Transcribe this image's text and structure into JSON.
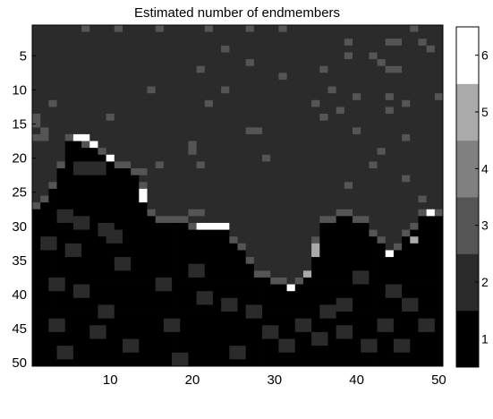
{
  "chart_data": {
    "type": "heatmap",
    "title": "Estimated number of endmembers",
    "xlabel": "",
    "ylabel": "",
    "rows": 50,
    "cols": 50,
    "x_ticks": [
      10,
      20,
      30,
      40,
      50
    ],
    "y_ticks": [
      5,
      10,
      15,
      20,
      25,
      30,
      35,
      40,
      45,
      50
    ],
    "colorbar": {
      "levels": 6,
      "ticks": [
        1,
        2,
        3,
        4,
        5,
        6
      ],
      "colors": [
        "#000000",
        "#2b2b2b",
        "#555555",
        "#808080",
        "#aaaaaa",
        "#ffffff"
      ]
    },
    "background_value": 2,
    "grid": false,
    "boundary": [
      {
        "x": 1,
        "y": 27
      },
      {
        "x": 3,
        "y": 24
      },
      {
        "x": 5,
        "y": 17
      },
      {
        "x": 6,
        "y": 17
      },
      {
        "x": 8,
        "y": 18
      },
      {
        "x": 10,
        "y": 20
      },
      {
        "x": 12,
        "y": 21
      },
      {
        "x": 13,
        "y": 22
      },
      {
        "x": 14,
        "y": 24
      },
      {
        "x": 14,
        "y": 27
      },
      {
        "x": 16,
        "y": 29
      },
      {
        "x": 19,
        "y": 29
      },
      {
        "x": 21,
        "y": 30
      },
      {
        "x": 24,
        "y": 30
      },
      {
        "x": 26,
        "y": 33
      },
      {
        "x": 28,
        "y": 37
      },
      {
        "x": 31,
        "y": 38
      },
      {
        "x": 32,
        "y": 39
      },
      {
        "x": 34,
        "y": 37
      },
      {
        "x": 35,
        "y": 32
      },
      {
        "x": 36,
        "y": 29
      },
      {
        "x": 39,
        "y": 28
      },
      {
        "x": 41,
        "y": 29
      },
      {
        "x": 43,
        "y": 32
      },
      {
        "x": 44,
        "y": 34
      },
      {
        "x": 46,
        "y": 31
      },
      {
        "x": 48,
        "y": 28
      },
      {
        "x": 50,
        "y": 28
      }
    ],
    "ridge_cells": [
      {
        "x": 6,
        "y": 17,
        "value": 6
      },
      {
        "x": 7,
        "y": 17,
        "value": 6
      },
      {
        "x": 8,
        "y": 18,
        "value": 6
      },
      {
        "x": 10,
        "y": 20,
        "value": 6
      },
      {
        "x": 14,
        "y": 25,
        "value": 6
      },
      {
        "x": 14,
        "y": 26,
        "value": 6
      },
      {
        "x": 21,
        "y": 30,
        "value": 6
      },
      {
        "x": 22,
        "y": 30,
        "value": 6
      },
      {
        "x": 23,
        "y": 30,
        "value": 6
      },
      {
        "x": 24,
        "y": 30,
        "value": 6
      },
      {
        "x": 32,
        "y": 39,
        "value": 6
      },
      {
        "x": 44,
        "y": 34,
        "value": 6
      },
      {
        "x": 49,
        "y": 28,
        "value": 6
      },
      {
        "x": 35,
        "y": 33,
        "value": 5
      },
      {
        "x": 35,
        "y": 34,
        "value": 5
      },
      {
        "x": 34,
        "y": 37,
        "value": 5
      },
      {
        "x": 47,
        "y": 32,
        "value": 5
      }
    ],
    "sparse_cells": [
      {
        "x": 7,
        "y": 1
      },
      {
        "x": 11,
        "y": 1
      },
      {
        "x": 16,
        "y": 1
      },
      {
        "x": 22,
        "y": 1
      },
      {
        "x": 27,
        "y": 1
      },
      {
        "x": 31,
        "y": 1
      },
      {
        "x": 47,
        "y": 1
      },
      {
        "x": 39,
        "y": 3
      },
      {
        "x": 44,
        "y": 3
      },
      {
        "x": 45,
        "y": 3
      },
      {
        "x": 48,
        "y": 3
      },
      {
        "x": 49,
        "y": 4
      },
      {
        "x": 24,
        "y": 4
      },
      {
        "x": 39,
        "y": 5
      },
      {
        "x": 42,
        "y": 5
      },
      {
        "x": 43,
        "y": 6
      },
      {
        "x": 27,
        "y": 6
      },
      {
        "x": 21,
        "y": 7
      },
      {
        "x": 36,
        "y": 7
      },
      {
        "x": 44,
        "y": 7
      },
      {
        "x": 45,
        "y": 7
      },
      {
        "x": 31,
        "y": 8
      },
      {
        "x": 15,
        "y": 10
      },
      {
        "x": 24,
        "y": 10
      },
      {
        "x": 37,
        "y": 10
      },
      {
        "x": 40,
        "y": 11
      },
      {
        "x": 44,
        "y": 11
      },
      {
        "x": 50,
        "y": 11
      },
      {
        "x": 3,
        "y": 12
      },
      {
        "x": 22,
        "y": 12
      },
      {
        "x": 35,
        "y": 12
      },
      {
        "x": 46,
        "y": 12
      },
      {
        "x": 38,
        "y": 13
      },
      {
        "x": 44,
        "y": 13
      },
      {
        "x": 1,
        "y": 14
      },
      {
        "x": 10,
        "y": 14
      },
      {
        "x": 36,
        "y": 14
      },
      {
        "x": 1,
        "y": 15
      },
      {
        "x": 2,
        "y": 16
      },
      {
        "x": 27,
        "y": 16
      },
      {
        "x": 28,
        "y": 16
      },
      {
        "x": 40,
        "y": 16
      },
      {
        "x": 1,
        "y": 17
      },
      {
        "x": 2,
        "y": 17
      },
      {
        "x": 46,
        "y": 17
      },
      {
        "x": 20,
        "y": 18
      },
      {
        "x": 20,
        "y": 19
      },
      {
        "x": 43,
        "y": 19
      },
      {
        "x": 29,
        "y": 20
      },
      {
        "x": 16,
        "y": 21
      },
      {
        "x": 21,
        "y": 21
      },
      {
        "x": 42,
        "y": 21
      },
      {
        "x": 14,
        "y": 22
      },
      {
        "x": 46,
        "y": 23
      },
      {
        "x": 39,
        "y": 24
      },
      {
        "x": 48,
        "y": 26
      },
      {
        "x": 20,
        "y": 28
      },
      {
        "x": 21,
        "y": 28
      }
    ],
    "dark_patches": [
      {
        "x": 6,
        "y": 21
      },
      {
        "x": 8,
        "y": 21
      },
      {
        "x": 4,
        "y": 28
      },
      {
        "x": 6,
        "y": 29
      },
      {
        "x": 2,
        "y": 32
      },
      {
        "x": 5,
        "y": 33
      },
      {
        "x": 3,
        "y": 38
      },
      {
        "x": 6,
        "y": 39
      },
      {
        "x": 9,
        "y": 30
      },
      {
        "x": 10,
        "y": 31
      },
      {
        "x": 11,
        "y": 35
      },
      {
        "x": 9,
        "y": 42
      },
      {
        "x": 8,
        "y": 45
      },
      {
        "x": 12,
        "y": 47
      },
      {
        "x": 17,
        "y": 44
      },
      {
        "x": 16,
        "y": 38
      },
      {
        "x": 20,
        "y": 36
      },
      {
        "x": 21,
        "y": 40
      },
      {
        "x": 24,
        "y": 41
      },
      {
        "x": 27,
        "y": 42
      },
      {
        "x": 29,
        "y": 45
      },
      {
        "x": 31,
        "y": 47
      },
      {
        "x": 33,
        "y": 44
      },
      {
        "x": 35,
        "y": 46
      },
      {
        "x": 36,
        "y": 42
      },
      {
        "x": 38,
        "y": 45
      },
      {
        "x": 41,
        "y": 47
      },
      {
        "x": 43,
        "y": 44
      },
      {
        "x": 45,
        "y": 47
      },
      {
        "x": 46,
        "y": 41
      },
      {
        "x": 48,
        "y": 44
      },
      {
        "x": 40,
        "y": 37
      },
      {
        "x": 44,
        "y": 39
      },
      {
        "x": 38,
        "y": 41
      },
      {
        "x": 3,
        "y": 44
      },
      {
        "x": 4,
        "y": 48
      },
      {
        "x": 18,
        "y": 49
      },
      {
        "x": 25,
        "y": 48
      }
    ]
  }
}
